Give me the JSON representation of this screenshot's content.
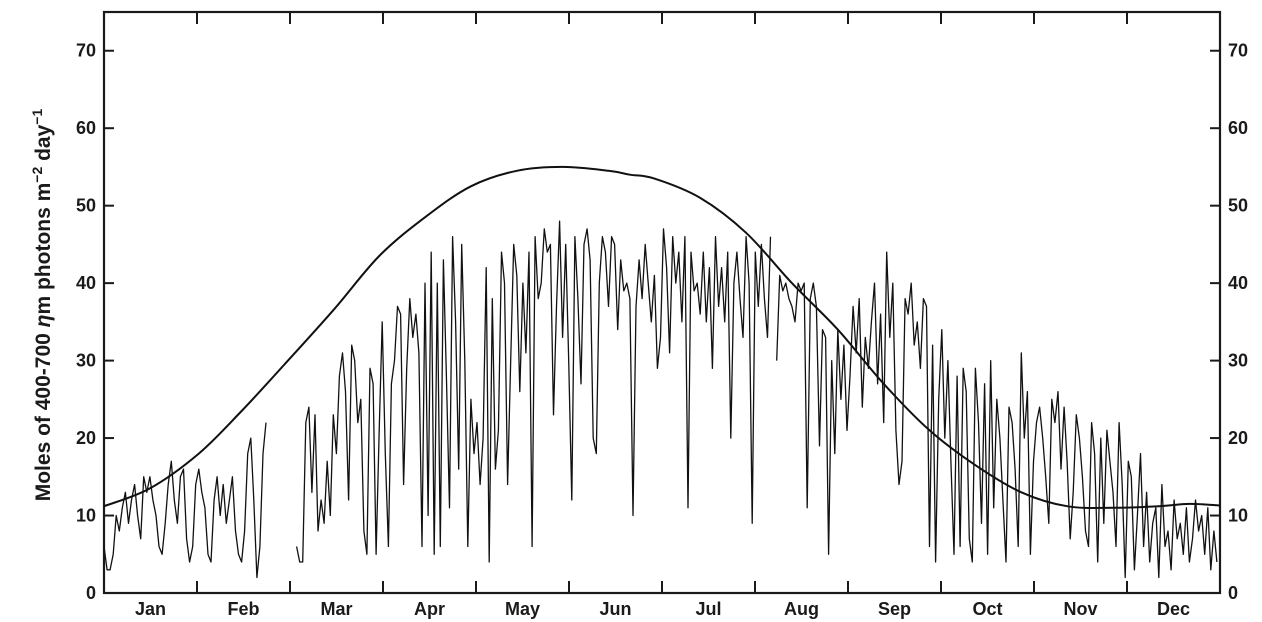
{
  "chart_data": {
    "type": "line",
    "title": "",
    "xlabel": "",
    "ylabel": {
      "prefix": "Moles of 400-700 ",
      "eta": "η",
      "middle": "m photons m",
      "sup1": "−2",
      "middle2": " day",
      "sup2": "−1"
    },
    "ylim": [
      0,
      75
    ],
    "yticks": [
      0,
      10,
      20,
      30,
      40,
      50,
      60,
      70
    ],
    "xlim": [
      0,
      365
    ],
    "months": [
      "Jan",
      "Feb",
      "Mar",
      "Apr",
      "May",
      "Jun",
      "Jul",
      "Aug",
      "Sep",
      "Oct",
      "Nov",
      "Dec"
    ],
    "grid": false,
    "legend": "none",
    "series": [
      {
        "role": "clear-sky maximum (smooth envelope)",
        "x": [
          0,
          15,
          31,
          45,
          59,
          75,
          90,
          105,
          120,
          135,
          150,
          165,
          172,
          180,
          195,
          210,
          225,
          240,
          255,
          270,
          285,
          300,
          315,
          330,
          345,
          355,
          365
        ],
        "values": [
          11.2,
          13.5,
          18,
          23.5,
          29.5,
          36.5,
          43.5,
          48.5,
          52.5,
          54.5,
          55,
          54.5,
          54,
          53.5,
          51,
          46.5,
          40,
          34,
          27,
          21,
          16.5,
          13,
          11.2,
          11,
          11.2,
          11.5,
          11.3
        ]
      },
      {
        "role": "daily measured values",
        "segments": [
          {
            "x": [
              0,
              1,
              2,
              3,
              4,
              5,
              6,
              7,
              8,
              9,
              10,
              11,
              12,
              13,
              14,
              15,
              16,
              17,
              18,
              19,
              20,
              21,
              22,
              23,
              24,
              25,
              26,
              27,
              28,
              29,
              30,
              31,
              32,
              33,
              34,
              35,
              36,
              37,
              38,
              39,
              40,
              41,
              42,
              43,
              44,
              45,
              46,
              47,
              48,
              49,
              50,
              51,
              52,
              53
            ],
            "values": [
              6,
              3,
              3,
              5,
              10,
              8,
              11,
              13,
              9,
              12,
              14,
              10,
              7,
              15,
              13,
              15,
              12,
              10,
              6,
              5,
              9,
              14,
              17,
              12,
              9,
              15,
              16,
              7,
              4,
              6,
              14,
              16,
              13,
              11,
              5,
              4,
              12,
              15,
              10,
              14,
              9,
              12,
              15,
              8,
              5,
              4,
              8,
              18,
              20,
              12,
              2,
              6,
              18,
              22
            ]
          },
          {
            "x": [
              63,
              64,
              65,
              66,
              67,
              68,
              69,
              70,
              71,
              72,
              73,
              74,
              75,
              76,
              77,
              78,
              79,
              80,
              81,
              82,
              83,
              84,
              85,
              86,
              87,
              88,
              89,
              90,
              91,
              92,
              93,
              94,
              95,
              96,
              97,
              98,
              99,
              100,
              101,
              102,
              103,
              104,
              105,
              106,
              107,
              108,
              109,
              110,
              111,
              112,
              113,
              114,
              115,
              116,
              117,
              118,
              119,
              120,
              121,
              122,
              123,
              124,
              125,
              126,
              127,
              128,
              129,
              130,
              131,
              132,
              133,
              134,
              135,
              136,
              137,
              138,
              139,
              140,
              141,
              142,
              143,
              144,
              145,
              146,
              147,
              148,
              149,
              150,
              151,
              152,
              153,
              154,
              155,
              156,
              157,
              158,
              159,
              160,
              161,
              162,
              163,
              164,
              165,
              166,
              167,
              168,
              169,
              170,
              171,
              172,
              173,
              174,
              175,
              176,
              177,
              178,
              179,
              180,
              181,
              182,
              183,
              184,
              185,
              186,
              187,
              188,
              189,
              190,
              191,
              192,
              193,
              194,
              195,
              196,
              197,
              198,
              199,
              200,
              201,
              202,
              203,
              204,
              205,
              206,
              207,
              208,
              209,
              210,
              211,
              212,
              213,
              214,
              215,
              216,
              217,
              218
            ],
            "values": [
              6,
              4,
              4,
              22,
              24,
              13,
              23,
              8,
              12,
              9,
              17,
              10,
              23,
              18,
              28,
              31,
              26,
              12,
              32,
              30,
              22,
              25,
              8,
              5,
              29,
              27,
              5,
              21,
              35,
              18,
              6,
              27,
              30,
              37,
              36,
              14,
              29,
              38,
              33,
              36,
              31,
              6,
              40,
              10,
              44,
              5,
              40,
              6,
              43,
              28,
              11,
              46,
              35,
              16,
              45,
              30,
              6,
              25,
              18,
              22,
              14,
              20,
              42,
              4,
              38,
              16,
              21,
              44,
              40,
              14,
              30,
              45,
              41,
              26,
              40,
              31,
              44,
              6,
              46,
              38,
              40,
              47,
              44,
              45,
              23,
              37,
              48,
              33,
              45,
              30,
              12,
              46,
              38,
              27,
              45,
              47,
              43,
              20,
              18,
              40,
              46,
              44,
              37,
              46,
              45,
              34,
              43,
              39,
              40,
              38,
              10,
              37,
              43,
              38,
              45,
              40,
              35,
              41,
              29,
              33,
              47,
              42,
              31,
              46,
              40,
              44,
              35,
              46,
              11,
              44,
              39,
              40,
              36,
              44,
              35,
              42,
              29,
              46,
              37,
              42,
              35,
              44,
              20,
              40,
              44,
              38,
              33,
              46,
              40,
              9,
              44,
              37,
              45,
              38,
              33,
              46
            ]
          },
          {
            "x": [
              220,
              221,
              222,
              223,
              224,
              225,
              226,
              227,
              228,
              229,
              230,
              231,
              232,
              233,
              234,
              235,
              236,
              237,
              238,
              239,
              240,
              241,
              242,
              243,
              244,
              245,
              246,
              247,
              248,
              249,
              250,
              251,
              252,
              253,
              254,
              255,
              256,
              257,
              258,
              259,
              260,
              261,
              262,
              263,
              264,
              265,
              266,
              267,
              268,
              269,
              270,
              271,
              272,
              273,
              274,
              275,
              276,
              277,
              278,
              279,
              280,
              281,
              282,
              283,
              284,
              285,
              286,
              287,
              288,
              289,
              290,
              291,
              292,
              293,
              294,
              295,
              296,
              297,
              298,
              299,
              300,
              301,
              302,
              303,
              304,
              305,
              306,
              307,
              308,
              309,
              310,
              311,
              312,
              313,
              314,
              315,
              316,
              317,
              318,
              319,
              320,
              321,
              322,
              323,
              324,
              325,
              326,
              327,
              328,
              329,
              330,
              331,
              332,
              333,
              334,
              335,
              336,
              337,
              338,
              339,
              340,
              341,
              342,
              343,
              344,
              345,
              346,
              347,
              348,
              349,
              350,
              351,
              352,
              353,
              354,
              355,
              356,
              357,
              358,
              359,
              360,
              361,
              362,
              363,
              364
            ],
            "values": [
              30,
              41,
              39,
              40,
              38,
              37,
              35,
              40,
              39,
              40,
              11,
              38,
              40,
              37,
              19,
              34,
              33,
              5,
              30,
              18,
              34,
              25,
              32,
              21,
              28,
              37,
              31,
              38,
              24,
              33,
              29,
              35,
              40,
              27,
              36,
              22,
              44,
              33,
              40,
              21,
              14,
              17,
              38,
              36,
              40,
              32,
              35,
              29,
              38,
              37,
              6,
              32,
              4,
              25,
              34,
              20,
              30,
              17,
              5,
              28,
              6,
              29,
              26,
              7,
              4,
              29,
              22,
              9,
              27,
              5,
              30,
              11,
              25,
              20,
              12,
              4,
              24,
              22,
              16,
              6,
              31,
              20,
              26,
              5,
              17,
              22,
              24,
              20,
              15,
              9,
              25,
              22,
              26,
              16,
              24,
              17,
              7,
              13,
              23,
              20,
              15,
              8,
              6,
              22,
              18,
              4,
              20,
              9,
              21,
              17,
              13,
              6,
              22,
              14,
              2,
              17,
              15,
              3,
              10,
              18,
              6,
              13,
              4,
              9,
              11,
              2,
              14,
              6,
              8,
              3,
              12,
              7,
              9,
              5,
              11,
              4,
              7,
              12,
              8,
              10,
              5,
              11,
              3,
              8,
              4
            ]
          }
        ]
      }
    ]
  }
}
